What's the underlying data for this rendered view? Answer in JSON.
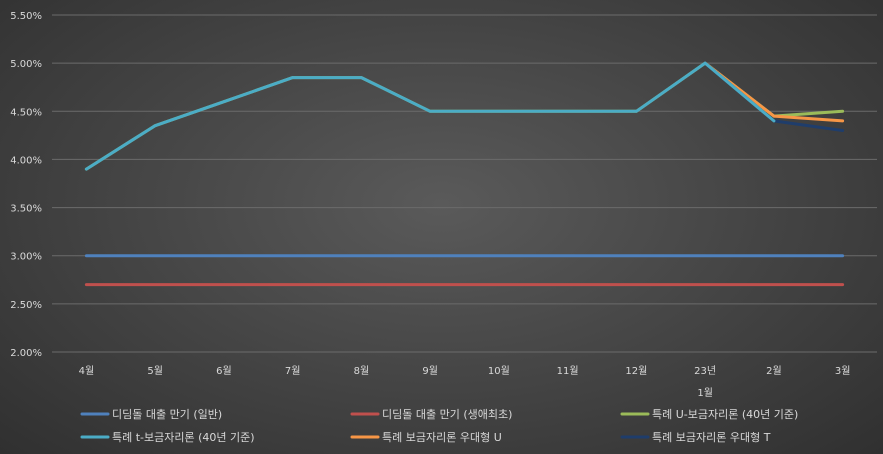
{
  "chart_data": {
    "type": "line",
    "categories": [
      "4월",
      "5월",
      "6월",
      "7월",
      "8월",
      "9월",
      "10월",
      "11월",
      "12월",
      "23년",
      "2월",
      "3월"
    ],
    "year_marker": "1월",
    "ylim": [
      2.0,
      5.5
    ],
    "yticks": [
      "2.00%",
      "2.50%",
      "3.00%",
      "3.50%",
      "4.00%",
      "4.50%",
      "5.00%",
      "5.50%"
    ],
    "grid": true,
    "legend_position": "bottom",
    "series": [
      {
        "name": "디딤돌 대출 만기 (일반)",
        "color": "#4f81bd",
        "values": [
          3.0,
          3.0,
          3.0,
          3.0,
          3.0,
          3.0,
          3.0,
          3.0,
          3.0,
          3.0,
          3.0,
          3.0
        ]
      },
      {
        "name": "디딤돌 대출 만기 (생애최초)",
        "color": "#c0504d",
        "values": [
          2.7,
          2.7,
          2.7,
          2.7,
          2.7,
          2.7,
          2.7,
          2.7,
          2.7,
          2.7,
          2.7,
          2.7
        ]
      },
      {
        "name": "특례 U-보금자리론 (40년 기준)",
        "color": "#9bbb59",
        "values": [
          3.9,
          4.35,
          4.6,
          4.85,
          4.85,
          4.5,
          4.5,
          4.5,
          4.5,
          5.0,
          4.45,
          4.5
        ]
      },
      {
        "name": "특례 t-보금자리론 (40년 기준)",
        "color": "#4bacc6",
        "values": [
          3.9,
          4.35,
          4.6,
          4.85,
          4.85,
          4.5,
          4.5,
          4.5,
          4.5,
          5.0,
          4.4,
          null
        ]
      },
      {
        "name": "특례 보금자리론 우대형 U",
        "color": "#f79646",
        "values": [
          null,
          null,
          null,
          null,
          null,
          null,
          null,
          null,
          null,
          5.0,
          4.45,
          4.4
        ]
      },
      {
        "name": "특례 보금자리론 우대형 T",
        "color": "#1f3d6b",
        "values": [
          null,
          null,
          null,
          null,
          null,
          null,
          null,
          null,
          null,
          5.0,
          4.4,
          4.3
        ]
      }
    ]
  }
}
